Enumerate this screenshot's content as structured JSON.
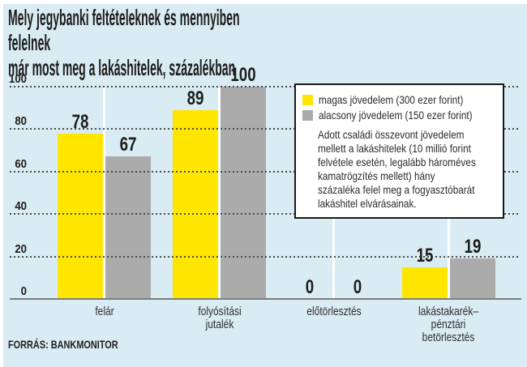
{
  "header": {
    "title_lines": [
      "Mely jegybanki feltételeknek és mennyiben felelnek",
      "már most meg a lakáshitelek, százalékban"
    ]
  },
  "legend": {
    "items": [
      {
        "label": "magas jövedelem (300 ezer forint)",
        "color": "#ffe600"
      },
      {
        "label": "alacsony jövedelem (150 ezer forint)",
        "color": "#ababab"
      }
    ],
    "note_lines": [
      "Adott családi összevont jövedelem",
      "mellett a lakáshitelek (10 millió forint",
      "felvétele esetén, legalább hároméves",
      "kamatrögzítés mellett) hány",
      "százaléka felel meg a fogyasztóbarát",
      "lakáshitel elvárásainak."
    ]
  },
  "footer": {
    "source": "FORRÁS: BANKMONITOR"
  },
  "colors": {
    "background": "#d9ebf3",
    "bar_yellow": "#ffe600",
    "bar_gray": "#ababab",
    "gridline": "#4a4a4a",
    "axis_line": "#7d7d7d",
    "text": "#1d1d1b",
    "legend_border": "#1a1a1a"
  },
  "chart_data": {
    "type": "bar",
    "title": "Mely jegybanki feltételeknek és mennyiben felelnek már most meg a lakáshitelek, százalékban",
    "categories": [
      "felár",
      "folyósítási\njutalék",
      "előtörlesztés",
      "lakástakarék–\npénztári\nbetörlesztés"
    ],
    "series": [
      {
        "name": "magas jövedelem (300 ezer forint)",
        "color": "#ffe600",
        "values": [
          78,
          89,
          0,
          15
        ]
      },
      {
        "name": "alacsony jövedelem (150 ezer forint)",
        "color": "#ababab",
        "values": [
          67,
          100,
          0,
          19
        ]
      }
    ],
    "yticks": [
      0,
      20,
      40,
      60,
      80,
      100
    ],
    "ylim": [
      0,
      100
    ],
    "xlabel": "",
    "ylabel": "",
    "grid": "dotted-horizontal",
    "legend_position": "top-right-box",
    "source": "FORRÁS: BANKMONITOR"
  }
}
